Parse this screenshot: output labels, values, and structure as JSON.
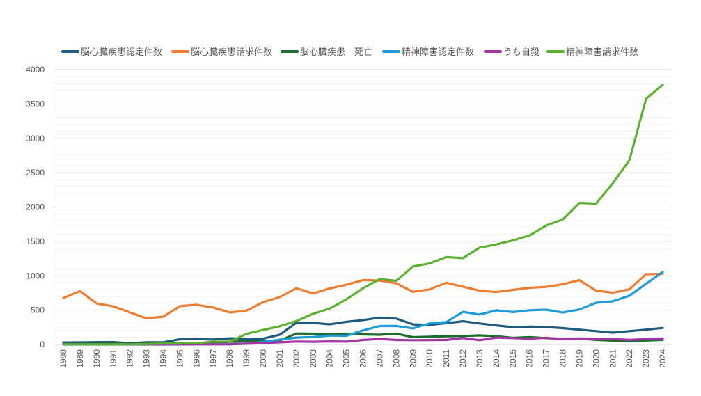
{
  "chart_data": {
    "type": "line",
    "title": "",
    "xlabel": "",
    "ylabel": "",
    "ylim": [
      0,
      4000
    ],
    "yticks": [
      0,
      500,
      1000,
      1500,
      2000,
      2500,
      3000,
      3500,
      4000
    ],
    "y_minor_step": 100,
    "grid": true,
    "legend_position": "top",
    "categories": [
      "1988",
      "1989",
      "1990",
      "1991",
      "1992",
      "1993",
      "1994",
      "1995",
      "1996",
      "1997",
      "1998",
      "1999",
      "2000",
      "2001",
      "2002",
      "2003",
      "2004",
      "2005",
      "2006",
      "2007",
      "2008",
      "2009",
      "2010",
      "2011",
      "2012",
      "2013",
      "2014",
      "2015",
      "2016",
      "2017",
      "2018",
      "2019",
      "2020",
      "2021",
      "2022",
      "2023",
      "2024"
    ],
    "series": [
      {
        "name": "脳心臓疾患認定件数",
        "color": "#1f5b7f",
        "values": [
          29,
          30,
          33,
          34,
          18,
          31,
          32,
          76,
          78,
          73,
          90,
          81,
          85,
          143,
          317,
          314,
          294,
          330,
          355,
          392,
          377,
          293,
          285,
          310,
          338,
          306,
          277,
          251,
          260,
          253,
          238,
          216,
          194,
          172,
          194,
          216,
          241
        ]
      },
      {
        "name": "脳心臓疾患請求件数",
        "color": "#ed7d31",
        "values": [
          676,
          777,
          597,
          555,
          466,
          380,
          405,
          558,
          578,
          539,
          466,
          493,
          617,
          690,
          819,
          742,
          816,
          869,
          938,
          931,
          889,
          767,
          802,
          898,
          842,
          784,
          763,
          795,
          825,
          840,
          877,
          936,
          784,
          753,
          803,
          1023,
          1030
        ]
      },
      {
        "name": "脳心臓疾患　死亡",
        "color": "#1e6b2e",
        "values": [
          8,
          10,
          12,
          14,
          10,
          12,
          15,
          18,
          20,
          28,
          40,
          48,
          55,
          58,
          160,
          157,
          150,
          157,
          147,
          142,
          158,
          106,
          113,
          121,
          123,
          133,
          121,
          96,
          107,
          92,
          82,
          86,
          67,
          57,
          54,
          58,
          67
        ]
      },
      {
        "name": "精神障害認定件数",
        "color": "#1f9bd7",
        "values": [
          0,
          0,
          0,
          0,
          0,
          0,
          0,
          0,
          2,
          2,
          4,
          14,
          36,
          70,
          100,
          108,
          130,
          127,
          205,
          268,
          269,
          234,
          308,
          325,
          475,
          436,
          497,
          472,
          498,
          506,
          465,
          509,
          608,
          629,
          710,
          883,
          1055
        ]
      },
      {
        "name": "うち自殺",
        "color": "#a535a5",
        "values": [
          2,
          2,
          2,
          2,
          2,
          2,
          2,
          2,
          2,
          2,
          3,
          11,
          19,
          31,
          43,
          40,
          45,
          42,
          66,
          81,
          66,
          63,
          65,
          66,
          93,
          63,
          99,
          93,
          84,
          98,
          76,
          88,
          81,
          79,
          67,
          79,
          88
        ]
      },
      {
        "name": "精神障害請求件数",
        "color": "#5db132",
        "values": [
          2,
          2,
          2,
          2,
          2,
          7,
          13,
          13,
          18,
          41,
          42,
          155,
          212,
          265,
          341,
          447,
          524,
          656,
          819,
          952,
          927,
          1136,
          1181,
          1272,
          1257,
          1409,
          1456,
          1515,
          1586,
          1732,
          1820,
          2060,
          2051,
          2346,
          2683,
          3575,
          3780
        ]
      }
    ]
  }
}
